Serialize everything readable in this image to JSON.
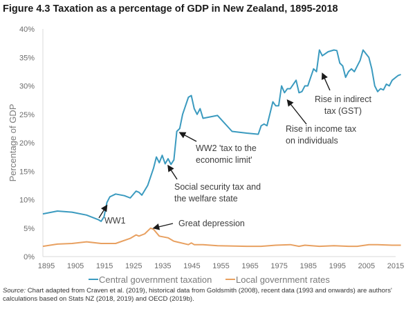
{
  "figure": {
    "title": "Figure 4.3 Taxation as a percentage of GDP in New Zealand, 1895-2018",
    "source_label": "Source:",
    "source_text": " Chart adapted from Craven et al. (2019), historical data from Goldsmith (2008), recent data (1993 and onwards) are authors' calculations based on Stats NZ (2018, 2019) and OECD (2019b)."
  },
  "chart_data": {
    "type": "line",
    "title": "Figure 4.3 Taxation as a percentage of GDP in New Zealand, 1895-2018",
    "xlabel": "",
    "ylabel": "Percentage of GDP",
    "xlim": [
      1895,
      2018
    ],
    "ylim": [
      0,
      40
    ],
    "x_ticks": [
      "1895",
      "1905",
      "1915",
      "1925",
      "1935",
      "1945",
      "1955",
      "1965",
      "1975",
      "1985",
      "1995",
      "2005",
      "2015"
    ],
    "y_ticks": [
      "0%",
      "5%",
      "10%",
      "15%",
      "20%",
      "25%",
      "30%",
      "35%",
      "40%"
    ],
    "grid": false,
    "legend_position": "bottom",
    "series": [
      {
        "name": "Central government taxation",
        "color": "#3a9abf",
        "points": [
          [
            1895,
            7.5
          ],
          [
            1900,
            8.0
          ],
          [
            1905,
            7.8
          ],
          [
            1910,
            7.3
          ],
          [
            1914,
            6.5
          ],
          [
            1915,
            6.2
          ],
          [
            1916,
            7.0
          ],
          [
            1917,
            9.5
          ],
          [
            1918,
            10.5
          ],
          [
            1920,
            11.0
          ],
          [
            1923,
            10.7
          ],
          [
            1925,
            10.3
          ],
          [
            1927,
            11.5
          ],
          [
            1928,
            11.3
          ],
          [
            1929,
            10.8
          ],
          [
            1931,
            12.5
          ],
          [
            1933,
            15.5
          ],
          [
            1934,
            17.5
          ],
          [
            1935,
            16.5
          ],
          [
            1936,
            17.8
          ],
          [
            1937,
            16.3
          ],
          [
            1938,
            17.2
          ],
          [
            1939,
            16.2
          ],
          [
            1940,
            17.0
          ],
          [
            1941,
            22.0
          ],
          [
            1942,
            22.5
          ],
          [
            1943,
            25.0
          ],
          [
            1944,
            26.5
          ],
          [
            1945,
            28.0
          ],
          [
            1946,
            28.3
          ],
          [
            1947,
            26.0
          ],
          [
            1948,
            25.0
          ],
          [
            1949,
            26.0
          ],
          [
            1950,
            24.3
          ],
          [
            1955,
            24.8
          ],
          [
            1960,
            22.0
          ],
          [
            1965,
            21.7
          ],
          [
            1969,
            21.5
          ],
          [
            1970,
            23.0
          ],
          [
            1971,
            23.3
          ],
          [
            1972,
            23.0
          ],
          [
            1974,
            27.2
          ],
          [
            1975,
            26.5
          ],
          [
            1976,
            26.5
          ],
          [
            1977,
            30.0
          ],
          [
            1978,
            28.8
          ],
          [
            1979,
            29.5
          ],
          [
            1980,
            29.5
          ],
          [
            1982,
            31.0
          ],
          [
            1983,
            28.8
          ],
          [
            1984,
            29.0
          ],
          [
            1985,
            30.0
          ],
          [
            1986,
            30.0
          ],
          [
            1987,
            31.5
          ],
          [
            1988,
            33.0
          ],
          [
            1989,
            32.5
          ],
          [
            1990,
            36.3
          ],
          [
            1991,
            35.3
          ],
          [
            1993,
            36.0
          ],
          [
            1995,
            36.3
          ],
          [
            1996,
            36.2
          ],
          [
            1997,
            34.0
          ],
          [
            1998,
            33.5
          ],
          [
            1999,
            31.5
          ],
          [
            2000,
            32.5
          ],
          [
            2001,
            33.0
          ],
          [
            2002,
            32.5
          ],
          [
            2004,
            34.5
          ],
          [
            2005,
            36.3
          ],
          [
            2007,
            35.0
          ],
          [
            2008,
            33.0
          ],
          [
            2009,
            30.0
          ],
          [
            2010,
            29.0
          ],
          [
            2011,
            29.5
          ],
          [
            2012,
            29.3
          ],
          [
            2013,
            30.3
          ],
          [
            2014,
            30.0
          ],
          [
            2015,
            31.0
          ],
          [
            2017,
            31.8
          ],
          [
            2018,
            32.0
          ]
        ]
      },
      {
        "name": "Local government rates",
        "color": "#e8a060",
        "points": [
          [
            1895,
            1.8
          ],
          [
            1900,
            2.2
          ],
          [
            1905,
            2.3
          ],
          [
            1910,
            2.6
          ],
          [
            1915,
            2.3
          ],
          [
            1920,
            2.3
          ],
          [
            1925,
            3.2
          ],
          [
            1927,
            3.8
          ],
          [
            1928,
            3.6
          ],
          [
            1930,
            4.0
          ],
          [
            1932,
            5.0
          ],
          [
            1933,
            4.8
          ],
          [
            1935,
            3.6
          ],
          [
            1938,
            3.3
          ],
          [
            1940,
            2.7
          ],
          [
            1945,
            2.1
          ],
          [
            1946,
            2.4
          ],
          [
            1947,
            2.1
          ],
          [
            1950,
            2.1
          ],
          [
            1955,
            1.9
          ],
          [
            1965,
            1.8
          ],
          [
            1970,
            1.8
          ],
          [
            1975,
            2.0
          ],
          [
            1980,
            2.1
          ],
          [
            1983,
            1.8
          ],
          [
            1985,
            2.0
          ],
          [
            1990,
            1.8
          ],
          [
            1995,
            1.9
          ],
          [
            2000,
            1.8
          ],
          [
            2003,
            1.8
          ],
          [
            2007,
            2.1
          ],
          [
            2010,
            2.1
          ],
          [
            2015,
            2.0
          ],
          [
            2018,
            2.0
          ]
        ]
      }
    ],
    "annotations": [
      {
        "lines": [
          "WW1"
        ],
        "target": [
          1917,
          9.0
        ]
      },
      {
        "lines": [
          "Great depression"
        ],
        "target": [
          1933,
          5.0
        ]
      },
      {
        "lines": [
          "Social security tax and",
          "the welfare state"
        ],
        "target": [
          1938,
          16.0
        ]
      },
      {
        "lines": [
          "WW2 'tax to the",
          "economic limit'"
        ],
        "target": [
          1942,
          21.8
        ]
      },
      {
        "lines": [
          "Rise in income tax",
          "on individuals"
        ],
        "target": [
          1979,
          27.5
        ]
      },
      {
        "lines": [
          "Rise in indirect",
          "tax (GST)"
        ],
        "target": [
          1991,
          32.2
        ]
      }
    ]
  }
}
